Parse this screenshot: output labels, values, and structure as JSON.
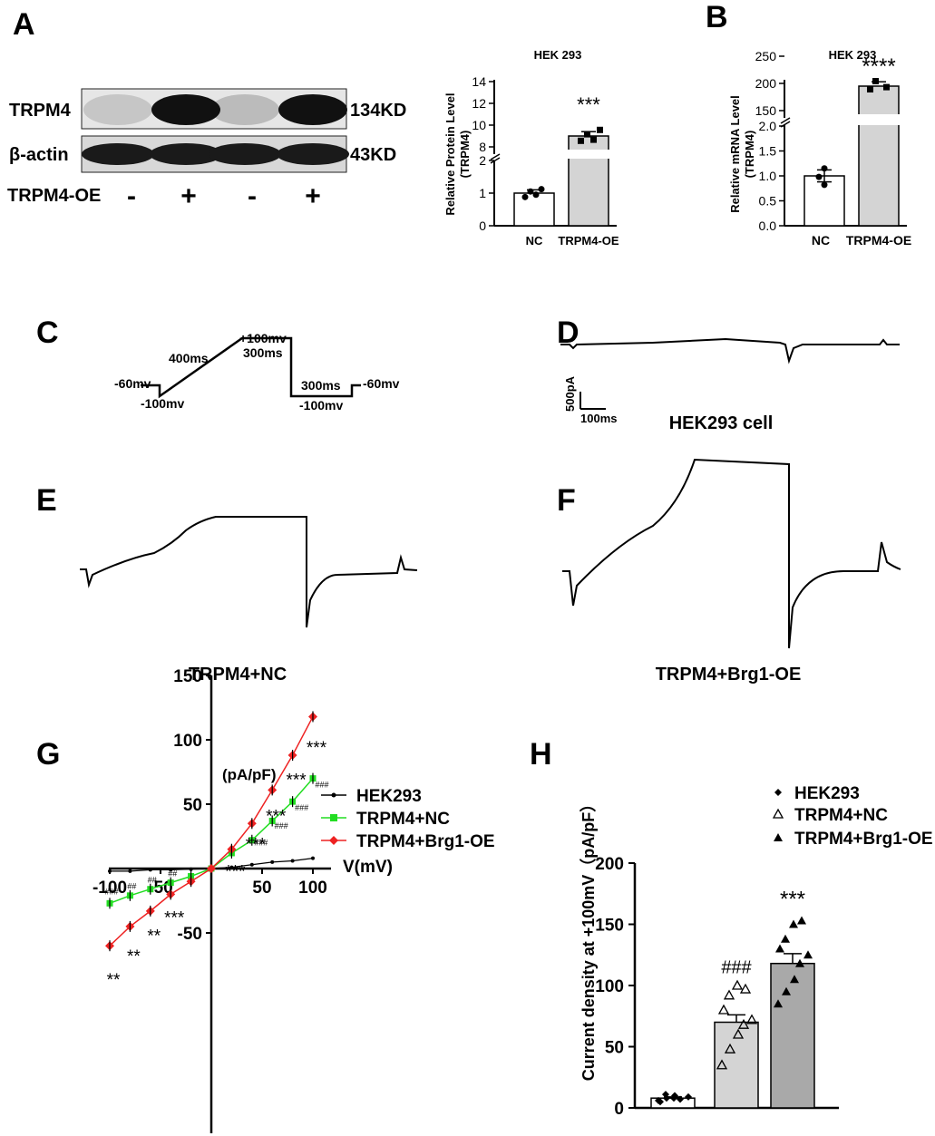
{
  "panels": {
    "A": "A",
    "B": "B",
    "C": "C",
    "D": "D",
    "E": "E",
    "F": "F",
    "G": "G",
    "H": "H"
  },
  "western": {
    "rows": [
      {
        "label": "TRPM4",
        "size": "134KD"
      },
      {
        "label": "β-actin",
        "size": "43KD"
      }
    ],
    "oe_label": "TRPM4-OE",
    "lanes": [
      "-",
      "+",
      "-",
      "+"
    ]
  },
  "protocol": {
    "labels": {
      "start": "-60mv",
      "step1": "-100mv",
      "ramp": "400ms",
      "top": "+100mv",
      "hold": "300ms",
      "step2": "300ms",
      "bottom": "-100mv",
      "end": "-60mv"
    }
  },
  "traces": {
    "D_caption": "HEK293 cell",
    "E_caption": "TRPM4+NC",
    "F_caption": "TRPM4+Brg1-OE",
    "scalebar_y": "500pA",
    "scalebar_x": "100ms"
  },
  "colors": {
    "bar_nc": "#ffffff",
    "bar_oe": "#d4d4d4",
    "bar_brg1": "#a9a9a9",
    "green": "#22dd22",
    "red": "#ee2222",
    "black": "#000000"
  },
  "chart_data": [
    {
      "id": "A-bar",
      "type": "bar",
      "title": "HEK 293",
      "ylabel": "Relative Protein Level\n(TRPM4)",
      "categories": [
        "NC",
        "TRPM4-OE"
      ],
      "values": [
        1.0,
        9.0
      ],
      "errors": [
        0.1,
        0.4
      ],
      "points": [
        [
          0.88,
          1.05,
          0.95,
          1.12
        ],
        [
          8.6,
          9.2,
          8.7,
          9.6
        ]
      ],
      "yticks": [
        "0",
        "1",
        "2",
        "8",
        "10",
        "12",
        "14"
      ],
      "axis_break": [
        2,
        8
      ],
      "significance": [
        "",
        "***"
      ]
    },
    {
      "id": "B-bar",
      "type": "bar",
      "title": "HEK 293",
      "ylabel": "Relative mRNA  Level\n(TRPM4)",
      "categories": [
        "NC",
        "TRPM4-OE"
      ],
      "values": [
        1.0,
        195
      ],
      "errors": [
        0.12,
        8
      ],
      "points": [
        [
          1.15,
          0.98,
          0.82
        ],
        [
          205,
          188,
          194
        ]
      ],
      "yticks": [
        "0.0",
        "0.5",
        "1.0",
        "1.5",
        "2.0",
        "150",
        "200",
        "250"
      ],
      "axis_break": [
        2,
        150
      ],
      "significance": [
        "",
        "****"
      ]
    },
    {
      "id": "G-iv",
      "type": "line",
      "xlabel": "V(mV)",
      "ylabel": "(pA/pF)",
      "xticks": [
        "-100",
        "-50",
        "50",
        "100"
      ],
      "yticks": [
        "-50",
        "50",
        "100",
        "150"
      ],
      "xlim": [
        -100,
        100
      ],
      "ylim": [
        -75,
        150
      ],
      "series": [
        {
          "name": "HEK293",
          "x": [
            -100,
            -80,
            -60,
            -40,
            -20,
            0,
            20,
            40,
            60,
            80,
            100
          ],
          "y": [
            -2,
            -2,
            -1,
            -1,
            -0.5,
            0,
            1,
            3,
            5,
            6,
            8
          ]
        },
        {
          "name": "TRPM4+NC",
          "x": [
            -100,
            -80,
            -60,
            -40,
            -20,
            0,
            20,
            40,
            60,
            80,
            100
          ],
          "y": [
            -27,
            -21,
            -16,
            -11,
            -6,
            0,
            12,
            22,
            37,
            52,
            70
          ]
        },
        {
          "name": "TRPM4+Brg1-OE",
          "x": [
            -100,
            -80,
            -60,
            -40,
            -20,
            0,
            20,
            40,
            60,
            80,
            100
          ],
          "y": [
            -60,
            -45,
            -33,
            -20,
            -10,
            0,
            15,
            35,
            61,
            88,
            118
          ]
        }
      ],
      "annotations_red": [
        "**",
        "**",
        "**",
        "***",
        "***",
        "***",
        "***",
        "***",
        "***"
      ],
      "annotations_green": [
        "###",
        "##",
        "##",
        "##",
        "###",
        "###",
        "###",
        "###",
        "###"
      ]
    },
    {
      "id": "H-bar",
      "type": "bar",
      "ylabel": "Current density at +100mV（pA/pF）",
      "yticks": [
        "0",
        "50",
        "100",
        "150",
        "200"
      ],
      "ylim": [
        0,
        200
      ],
      "categories": [
        "HEK293",
        "TRPM4+NC",
        "TRPM4+Brg1-OE"
      ],
      "values": [
        8,
        70,
        118
      ],
      "errors": [
        1,
        6,
        8
      ],
      "legend": [
        "HEK293",
        "TRPM4+NC",
        "TRPM4+Brg1-OE"
      ],
      "points": [
        [
          6,
          8,
          10,
          7,
          9,
          5,
          11,
          8
        ],
        [
          35,
          48,
          60,
          68,
          72,
          80,
          92,
          100,
          97
        ],
        [
          85,
          95,
          105,
          118,
          125,
          130,
          138,
          150,
          153
        ]
      ],
      "significance": [
        "",
        "###",
        "***"
      ]
    }
  ]
}
